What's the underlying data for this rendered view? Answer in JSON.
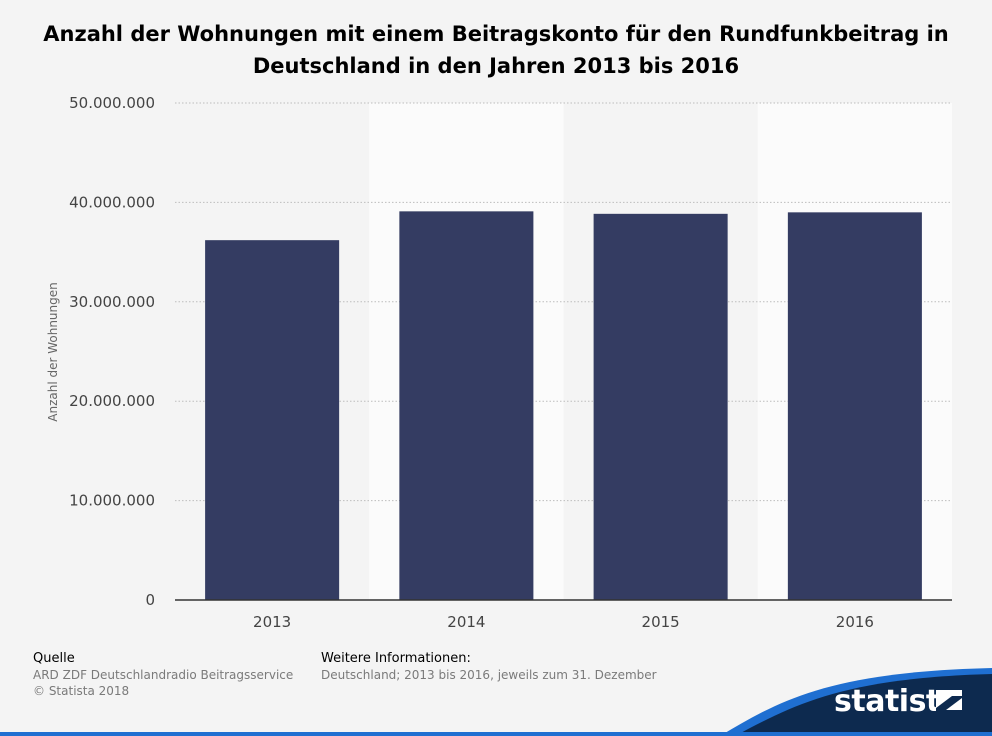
{
  "title_line1": "Anzahl der Wohnungen mit einem Beitragskonto für den Rundfunkbeitrag in",
  "title_line2": "Deutschland in den Jahren 2013 bis 2016",
  "chart_data": {
    "type": "bar",
    "title": "Anzahl der Wohnungen mit einem Beitragskonto für den Rundfunkbeitrag in Deutschland in den Jahren 2013 bis 2016",
    "categories": [
      "2013",
      "2014",
      "2015",
      "2016"
    ],
    "values": [
      36200000,
      39100000,
      38850000,
      39000000
    ],
    "xlabel": "",
    "ylabel": "Anzahl der Wohnungen",
    "ylim": [
      0,
      50000000
    ],
    "yticks": [
      0,
      10000000,
      20000000,
      30000000,
      40000000,
      50000000
    ],
    "ytick_labels": [
      "0",
      "10.000.000",
      "20.000.000",
      "30.000.000",
      "40.000.000",
      "50.000.000"
    ],
    "grid": true,
    "bar_color": "#343c62"
  },
  "footer": {
    "source_heading": "Quelle",
    "source_line1": "ARD ZDF Deutschlandradio Beitragsservice",
    "source_line2": "© Statista 2018",
    "info_heading": "Weitere Informationen:",
    "info_text": "Deutschland; 2013 bis 2016, jeweils zum 31. Dezember"
  },
  "brand": {
    "name": "statista",
    "color_dark": "#0d2a4f",
    "color_accent": "#1f6fd1"
  }
}
